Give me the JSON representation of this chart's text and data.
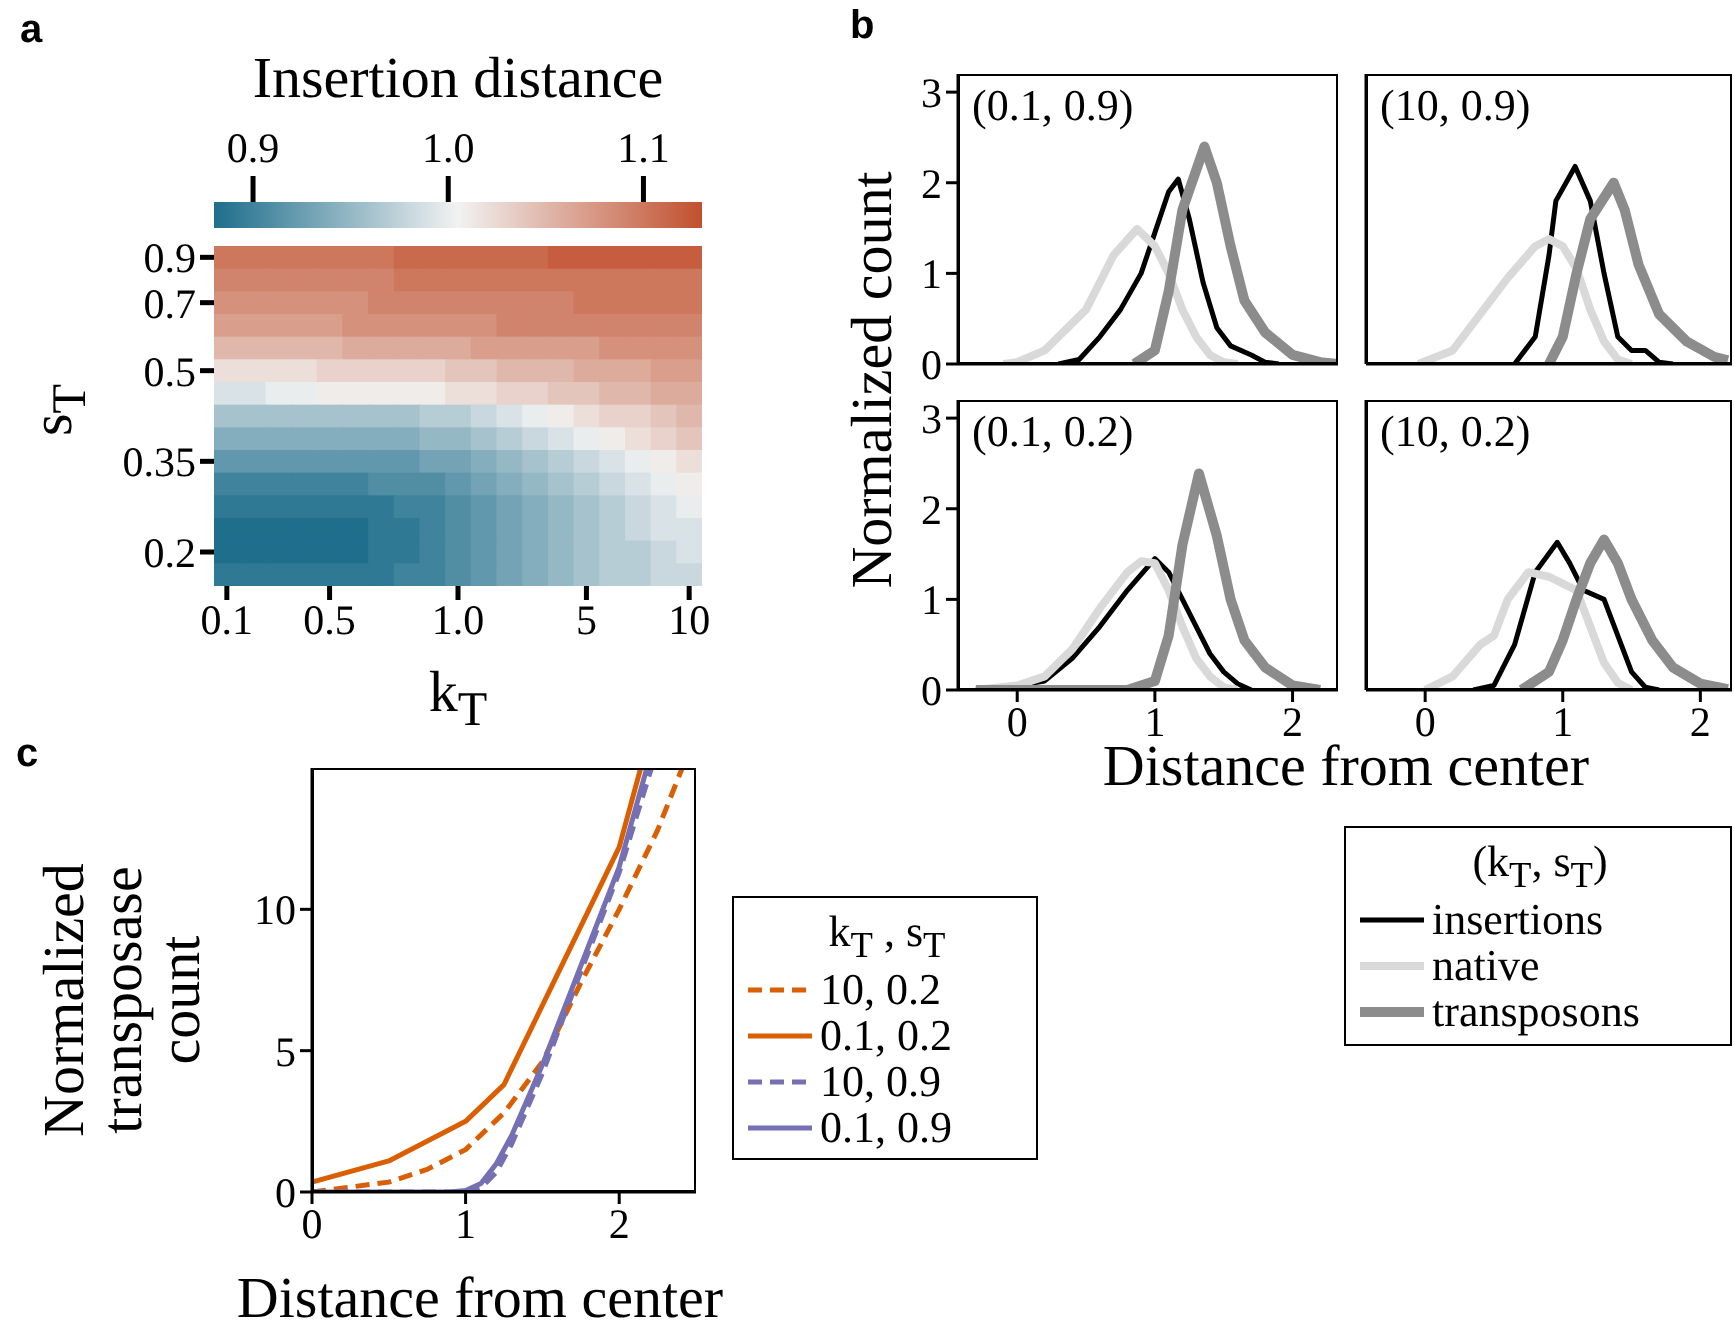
{
  "chart_data": [
    {
      "type": "heatmap",
      "xlabel": "k$_{T}$",
      "ylabel": "s$_{T}$",
      "clabel": "Insertion distance",
      "annotations": [
        "a"
      ],
      "categories": [
        "0.1",
        null,
        null,
        null,
        "0.5",
        null,
        null,
        null,
        null,
        "1.0",
        null,
        null,
        null,
        null,
        "5",
        null,
        null,
        null,
        "10"
      ],
      "y_categories": [
        "0.9",
        null,
        "0.7",
        null,
        null,
        "0.5",
        null,
        null,
        null,
        "0.35",
        null,
        null,
        null,
        "0.2",
        null
      ],
      "cells": [
        [
          1.1,
          1.1,
          1.1,
          1.1,
          1.1,
          1.1,
          1.1,
          1.11,
          1.11,
          1.11,
          1.11,
          1.11,
          1.11,
          1.12,
          1.12,
          1.12,
          1.12,
          1.12,
          1.12
        ],
        [
          1.09,
          1.09,
          1.09,
          1.09,
          1.09,
          1.09,
          1.09,
          1.1,
          1.1,
          1.1,
          1.1,
          1.1,
          1.1,
          1.1,
          1.1,
          1.1,
          1.1,
          1.1,
          1.1
        ],
        [
          1.08,
          1.08,
          1.08,
          1.08,
          1.08,
          1.08,
          1.09,
          1.09,
          1.09,
          1.09,
          1.09,
          1.09,
          1.09,
          1.09,
          1.1,
          1.1,
          1.1,
          1.1,
          1.1
        ],
        [
          1.07,
          1.07,
          1.07,
          1.07,
          1.07,
          1.08,
          1.08,
          1.08,
          1.08,
          1.08,
          1.08,
          1.09,
          1.09,
          1.09,
          1.09,
          1.09,
          1.09,
          1.09,
          1.09
        ],
        [
          1.05,
          1.05,
          1.05,
          1.05,
          1.05,
          1.06,
          1.06,
          1.06,
          1.06,
          1.06,
          1.07,
          1.07,
          1.07,
          1.07,
          1.07,
          1.08,
          1.08,
          1.08,
          1.08
        ],
        [
          1.02,
          1.02,
          1.02,
          1.02,
          1.03,
          1.03,
          1.03,
          1.03,
          1.03,
          1.04,
          1.04,
          1.05,
          1.05,
          1.05,
          1.06,
          1.06,
          1.06,
          1.07,
          1.07
        ],
        [
          0.99,
          0.99,
          1.0,
          1.0,
          1.01,
          1.01,
          1.01,
          1.01,
          1.01,
          1.02,
          1.02,
          1.03,
          1.03,
          1.04,
          1.04,
          1.05,
          1.05,
          1.06,
          1.06
        ],
        [
          0.96,
          0.96,
          0.96,
          0.96,
          0.96,
          0.96,
          0.96,
          0.96,
          0.97,
          0.97,
          0.98,
          0.99,
          1.0,
          1.01,
          1.02,
          1.03,
          1.03,
          1.04,
          1.05
        ],
        [
          0.94,
          0.94,
          0.94,
          0.94,
          0.94,
          0.94,
          0.94,
          0.94,
          0.95,
          0.95,
          0.96,
          0.97,
          0.98,
          0.99,
          1.0,
          1.01,
          1.02,
          1.03,
          1.04
        ],
        [
          0.92,
          0.92,
          0.92,
          0.92,
          0.92,
          0.92,
          0.92,
          0.92,
          0.93,
          0.93,
          0.94,
          0.95,
          0.96,
          0.97,
          0.98,
          0.99,
          1.0,
          1.01,
          1.02
        ],
        [
          0.9,
          0.9,
          0.9,
          0.9,
          0.9,
          0.9,
          0.91,
          0.91,
          0.91,
          0.92,
          0.93,
          0.94,
          0.95,
          0.96,
          0.97,
          0.98,
          0.99,
          1.0,
          1.01
        ],
        [
          0.89,
          0.89,
          0.89,
          0.89,
          0.89,
          0.89,
          0.89,
          0.9,
          0.9,
          0.91,
          0.92,
          0.93,
          0.94,
          0.95,
          0.96,
          0.97,
          0.98,
          0.99,
          1.0
        ],
        [
          0.88,
          0.88,
          0.88,
          0.88,
          0.88,
          0.88,
          0.89,
          0.89,
          0.9,
          0.91,
          0.92,
          0.93,
          0.94,
          0.95,
          0.96,
          0.97,
          0.98,
          0.99,
          0.99
        ],
        [
          0.88,
          0.88,
          0.88,
          0.88,
          0.88,
          0.88,
          0.89,
          0.89,
          0.9,
          0.91,
          0.92,
          0.93,
          0.94,
          0.95,
          0.96,
          0.97,
          0.97,
          0.98,
          0.99
        ],
        [
          0.89,
          0.89,
          0.89,
          0.89,
          0.89,
          0.89,
          0.89,
          0.9,
          0.9,
          0.91,
          0.92,
          0.93,
          0.94,
          0.95,
          0.96,
          0.97,
          0.97,
          0.98,
          0.98
        ]
      ],
      "clim": [
        0.88,
        1.13
      ],
      "cticks": [
        0.9,
        {
          "value": 1,
          "label": "1.0"
        },
        1.1
      ]
    },
    {
      "type": "line",
      "ylabel": "Normalized count",
      "annotations": [
        "b",
        "(0.1, 0.9)"
      ],
      "xlim": [
        -0.43,
        2.33
      ],
      "ylim": [
        0,
        3.2
      ],
      "xticks": [
        0,
        1,
        2
      ],
      "yticks": [
        0,
        1,
        2,
        3
      ],
      "tick_labels": "y",
      "series": [
        {
          "color": "#000000",
          "x": [
            0.3,
            0.45,
            0.6,
            0.75,
            0.9,
            1.0,
            1.1,
            1.17,
            1.25,
            1.35,
            1.45,
            1.55,
            1.7,
            1.8,
            1.9
          ],
          "values": [
            0,
            0.05,
            0.3,
            0.6,
            1.0,
            1.45,
            1.9,
            2.04,
            1.6,
            0.9,
            0.4,
            0.2,
            0.1,
            0.02,
            0
          ]
        },
        {
          "color": "#d9d9d9",
          "x": [
            -0.1,
            0,
            0.2,
            0.4,
            0.5,
            0.6,
            0.7,
            0.87,
            1.0,
            1.1,
            1.2,
            1.3,
            1.4,
            1.5,
            1.6
          ],
          "values": [
            0,
            0.02,
            0.15,
            0.45,
            0.6,
            0.9,
            1.2,
            1.49,
            1.3,
            1.0,
            0.6,
            0.3,
            0.1,
            0.02,
            0
          ]
        },
        {
          "color": "#8c8c8c",
          "x": [
            0.85,
            1.0,
            1.1,
            1.2,
            1.36,
            1.45,
            1.55,
            1.65,
            1.8,
            2.0,
            2.2,
            2.33
          ],
          "values": [
            0,
            0.15,
            0.8,
            1.7,
            2.4,
            2.0,
            1.3,
            0.7,
            0.35,
            0.1,
            0.02,
            0
          ]
        }
      ]
    },
    {
      "type": "line",
      "annotations": [
        "(10, 0.9)"
      ],
      "xlim": [
        -0.43,
        2.23
      ],
      "ylim": [
        0,
        3.2
      ],
      "xticks": [
        0,
        1,
        2
      ],
      "yticks": [
        0,
        1,
        2,
        3
      ],
      "tick_labels": false,
      "series": [
        {
          "color": "#000000",
          "x": [
            0.65,
            0.8,
            0.9,
            0.95,
            1.09,
            1.2,
            1.3,
            1.4,
            1.5,
            1.6,
            1.7,
            1.8
          ],
          "values": [
            0,
            0.3,
            1.2,
            1.8,
            2.18,
            1.8,
            1.0,
            0.3,
            0.15,
            0.15,
            0.02,
            0
          ]
        },
        {
          "color": "#d9d9d9",
          "x": [
            -0.05,
            0.2,
            0.4,
            0.6,
            0.8,
            0.9,
            1.0,
            1.1,
            1.2,
            1.3,
            1.4,
            1.5
          ],
          "values": [
            0,
            0.15,
            0.55,
            0.95,
            1.3,
            1.38,
            1.3,
            1.05,
            0.6,
            0.25,
            0.05,
            0
          ]
        },
        {
          "color": "#8c8c8c",
          "x": [
            0.9,
            1.0,
            1.1,
            1.2,
            1.37,
            1.45,
            1.55,
            1.7,
            1.9,
            2.1,
            2.2
          ],
          "values": [
            0,
            0.3,
            1.0,
            1.6,
            2.0,
            1.7,
            1.1,
            0.55,
            0.25,
            0.08,
            0.04
          ]
        }
      ]
    },
    {
      "type": "line",
      "xlabel": "Distance from center",
      "annotations": [
        "(0.1, 0.2)"
      ],
      "xlim": [
        -0.43,
        2.33
      ],
      "ylim": [
        0,
        3.2
      ],
      "xticks": [
        0,
        1,
        2
      ],
      "yticks": [
        0,
        1,
        2,
        3
      ],
      "series": [
        {
          "color": "#000000",
          "x": [
            -0.3,
            0,
            0.2,
            0.4,
            0.6,
            0.8,
            1.0,
            1.1,
            1.2,
            1.3,
            1.4,
            1.5,
            1.6,
            1.7
          ],
          "values": [
            0,
            0.05,
            0.1,
            0.35,
            0.7,
            1.1,
            1.45,
            1.3,
            1.0,
            0.7,
            0.4,
            0.2,
            0.07,
            0
          ]
        },
        {
          "color": "#d9d9d9",
          "x": [
            -0.3,
            0,
            0.2,
            0.4,
            0.6,
            0.8,
            0.9,
            1.0,
            1.1,
            1.2,
            1.3,
            1.4,
            1.5,
            1.6
          ],
          "values": [
            0,
            0.05,
            0.15,
            0.45,
            0.9,
            1.3,
            1.42,
            1.4,
            1.1,
            0.7,
            0.35,
            0.15,
            0.03,
            0
          ]
        },
        {
          "color": "#8c8c8c",
          "x": [
            -0.3,
            0.8,
            1.0,
            1.1,
            1.2,
            1.32,
            1.45,
            1.55,
            1.65,
            1.8,
            2.0,
            2.2
          ],
          "values": [
            0,
            0,
            0.1,
            0.6,
            1.6,
            2.39,
            1.7,
            1.0,
            0.55,
            0.25,
            0.05,
            0
          ]
        }
      ]
    },
    {
      "type": "line",
      "annotations": [
        "(10, 0.2)"
      ],
      "xlim": [
        -0.43,
        2.23
      ],
      "ylim": [
        0,
        3.2
      ],
      "xticks": [
        0,
        1,
        2
      ],
      "yticks": [
        0,
        1,
        2,
        3
      ],
      "tick_labels": "x",
      "legend": "bottom",
      "legend_title": "(k$_{T}$, s$_{T}$)",
      "series": [
        {
          "name": "insertions",
          "color": "#000000",
          "x": [
            0.35,
            0.5,
            0.65,
            0.8,
            0.96,
            1.05,
            1.15,
            1.3,
            1.4,
            1.5,
            1.6,
            1.7
          ],
          "values": [
            0,
            0.05,
            0.5,
            1.3,
            1.63,
            1.4,
            1.1,
            1.0,
            0.6,
            0.2,
            0.03,
            0
          ]
        },
        {
          "name": "native",
          "color": "#d9d9d9",
          "x": [
            0,
            0.2,
            0.4,
            0.5,
            0.6,
            0.75,
            0.9,
            1.1,
            1.2,
            1.3,
            1.4,
            1.5
          ],
          "values": [
            0,
            0.15,
            0.5,
            0.6,
            1.0,
            1.3,
            1.25,
            1.1,
            0.7,
            0.3,
            0.08,
            0
          ]
        },
        {
          "name": "transposons",
          "color": "#8c8c8c",
          "x": [
            0.7,
            0.9,
            1.0,
            1.1,
            1.2,
            1.3,
            1.4,
            1.5,
            1.65,
            1.8,
            2.0,
            2.2
          ],
          "values": [
            0,
            0.2,
            0.55,
            1.0,
            1.4,
            1.66,
            1.4,
            1.0,
            0.55,
            0.25,
            0.07,
            0.01
          ]
        }
      ]
    },
    {
      "type": "line",
      "xlabel": "Distance from center",
      "ylabel": "Normalized transposase count",
      "annotations": [
        "c"
      ],
      "xlim": [
        0,
        2.5
      ],
      "ylim": [
        0,
        15
      ],
      "xticks": [
        0,
        1,
        2
      ],
      "yticks": [
        0,
        5,
        10
      ],
      "legend": "right",
      "legend_title": "k$_{T}$ , s$_{T}$",
      "series": [
        {
          "name": "10, 0.2",
          "color": "#d95f02",
          "line_style": "dashed",
          "x": [
            0,
            0.5,
            0.75,
            1.0,
            1.25,
            1.5,
            1.75,
            2.0,
            2.25,
            2.41
          ],
          "values": [
            0,
            0.35,
            0.8,
            1.5,
            2.8,
            4.6,
            7.4,
            10,
            12.8,
            15
          ]
        },
        {
          "name": "0.1, 0.2",
          "color": "#d95f02",
          "line_style": "solid",
          "x": [
            0,
            0.5,
            1.0,
            1.25,
            1.5,
            1.75,
            2.0,
            2.14
          ],
          "values": [
            0.35,
            1.1,
            2.5,
            3.8,
            6.6,
            9.4,
            12.2,
            15
          ]
        },
        {
          "name": "10, 0.9",
          "color": "#7570b3",
          "line_style": "dashed",
          "x": [
            0,
            0.9,
            1.0,
            1.1,
            1.2,
            1.3,
            1.5,
            1.75,
            2.0,
            2.21
          ],
          "values": [
            0,
            0,
            0,
            0.15,
            0.7,
            1.7,
            4.2,
            7.8,
            11.3,
            15
          ]
        },
        {
          "name": "0.1, 0.9",
          "color": "#7570b3",
          "line_style": "solid",
          "x": [
            0,
            0.9,
            1.0,
            1.1,
            1.2,
            1.3,
            1.5,
            1.75,
            2.0,
            2.18
          ],
          "values": [
            0,
            0,
            0.05,
            0.3,
            1.0,
            2.0,
            4.5,
            8.0,
            11.5,
            15
          ]
        }
      ]
    }
  ]
}
